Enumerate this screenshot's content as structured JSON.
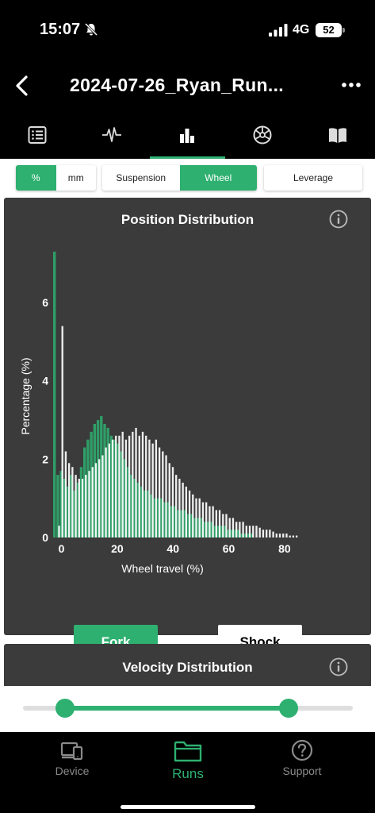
{
  "status": {
    "time": "15:07",
    "network": "4G",
    "battery": "52"
  },
  "header": {
    "title": "2024-07-26_Ryan_Run..."
  },
  "tabs": [
    {
      "name": "list",
      "icon": "list-icon"
    },
    {
      "name": "trace",
      "icon": "pulse-icon"
    },
    {
      "name": "histogram",
      "icon": "bar-chart-icon",
      "active": true
    },
    {
      "name": "settings",
      "icon": "wheel-icon"
    },
    {
      "name": "notes",
      "icon": "book-icon"
    }
  ],
  "toggles": {
    "unit": [
      "%",
      "mm"
    ],
    "mode": [
      "Suspension",
      "Wheel"
    ],
    "leverage": "Leverage"
  },
  "position_card": {
    "title": "Position Distribution",
    "fork_label": "Fork",
    "shock_label": "Shock"
  },
  "velocity_card": {
    "title": "Velocity Distribution"
  },
  "nav": {
    "device": "Device",
    "runs": "Runs",
    "support": "Support"
  },
  "colors": {
    "accent": "#2eb070",
    "fork": "#2eb070",
    "shock": "#ffffff",
    "card": "#3b3b3b"
  },
  "chart_data": {
    "type": "bar",
    "title": "Position Distribution",
    "xlabel": "Wheel travel (%)",
    "ylabel": "Percentage (%)",
    "xlim": [
      -3,
      86
    ],
    "ylim": [
      0,
      7.3
    ],
    "xticks": [
      0,
      20,
      40,
      60,
      80
    ],
    "yticks": [
      0,
      2,
      4,
      6
    ],
    "bin_width": 1.2,
    "series": [
      {
        "name": "Fork",
        "x": [
          -3.0,
          -1.8,
          -0.6,
          0.6,
          1.8,
          3.0,
          4.2,
          5.4,
          6.6,
          7.8,
          9.0,
          10.2,
          11.4,
          12.6,
          13.8,
          15.0,
          16.2,
          17.4,
          18.6,
          19.8,
          21.0,
          22.2,
          23.4,
          24.6,
          25.8,
          27.0,
          28.2,
          29.4,
          30.6,
          31.8,
          33.0,
          34.2,
          35.4,
          36.6,
          37.8,
          39.0,
          40.2,
          41.4,
          42.6,
          43.8,
          45.0,
          46.2,
          47.4,
          48.6,
          49.8,
          51.0,
          52.2,
          53.4,
          54.6,
          55.8,
          57.0,
          58.2,
          59.4,
          60.6,
          61.8,
          63.0,
          64.2,
          65.4,
          66.6,
          67.8
        ],
        "values": [
          7.3,
          1.6,
          1.7,
          1.5,
          1.3,
          1.6,
          1.2,
          1.4,
          1.8,
          2.3,
          2.5,
          2.7,
          2.9,
          3.0,
          3.1,
          2.9,
          2.8,
          2.6,
          2.5,
          2.4,
          2.2,
          2.0,
          1.8,
          1.6,
          1.5,
          1.4,
          1.3,
          1.2,
          1.2,
          1.1,
          1.0,
          1.0,
          1.0,
          0.9,
          0.9,
          0.8,
          0.8,
          0.7,
          0.7,
          0.7,
          0.6,
          0.6,
          0.5,
          0.5,
          0.5,
          0.4,
          0.4,
          0.4,
          0.3,
          0.3,
          0.3,
          0.3,
          0.2,
          0.2,
          0.2,
          0.2,
          0.1,
          0.1,
          0.1,
          0.1
        ]
      },
      {
        "name": "Shock",
        "x": [
          -1.2,
          0.0,
          1.2,
          2.4,
          3.6,
          4.8,
          6.0,
          7.2,
          8.4,
          9.6,
          10.8,
          12.0,
          13.2,
          14.4,
          15.6,
          16.8,
          18.0,
          19.2,
          20.4,
          21.6,
          22.8,
          24.0,
          25.2,
          26.4,
          27.6,
          28.8,
          30.0,
          31.2,
          32.4,
          33.6,
          34.8,
          36.0,
          37.2,
          38.4,
          39.6,
          40.8,
          42.0,
          43.2,
          44.4,
          45.6,
          46.8,
          48.0,
          49.2,
          50.4,
          51.6,
          52.8,
          54.0,
          55.2,
          56.4,
          57.6,
          58.8,
          60.0,
          61.2,
          62.4,
          63.6,
          64.8,
          66.0,
          67.2,
          68.4,
          69.6,
          70.8,
          72.0,
          73.2,
          74.4,
          75.6,
          76.8,
          78.0,
          79.2,
          80.4,
          81.6,
          82.8,
          84.0
        ],
        "values": [
          0.3,
          5.4,
          2.2,
          1.9,
          1.8,
          1.6,
          1.5,
          1.5,
          1.6,
          1.7,
          1.8,
          1.9,
          2.0,
          2.1,
          2.3,
          2.4,
          2.5,
          2.6,
          2.6,
          2.7,
          2.5,
          2.6,
          2.7,
          2.8,
          2.6,
          2.7,
          2.6,
          2.5,
          2.4,
          2.5,
          2.3,
          2.2,
          2.1,
          1.9,
          1.8,
          1.6,
          1.5,
          1.4,
          1.3,
          1.2,
          1.1,
          1.0,
          1.0,
          0.9,
          0.9,
          0.8,
          0.8,
          0.7,
          0.7,
          0.6,
          0.6,
          0.5,
          0.5,
          0.4,
          0.4,
          0.4,
          0.3,
          0.3,
          0.3,
          0.3,
          0.25,
          0.2,
          0.2,
          0.2,
          0.15,
          0.1,
          0.1,
          0.1,
          0.1,
          0.05,
          0.05,
          0.05
        ]
      }
    ]
  }
}
